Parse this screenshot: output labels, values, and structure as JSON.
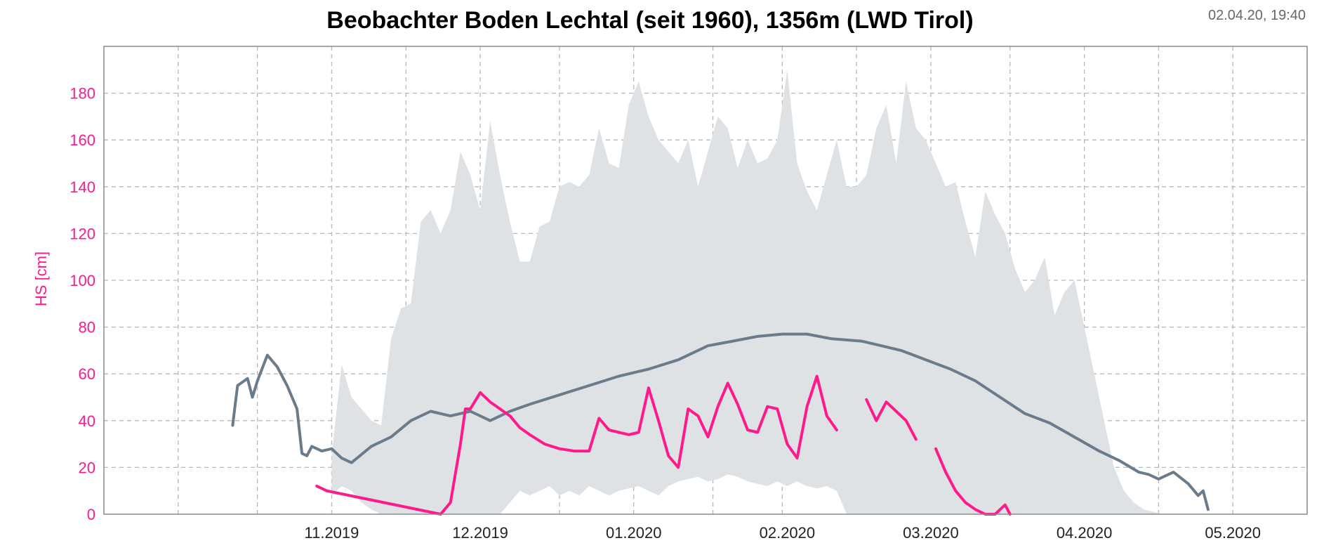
{
  "timestamp": "02.04.20, 19:40",
  "chart_data": {
    "type": "line",
    "title": "Beobachter Boden Lechtal (seit 1960), 1356m (LWD Tirol)",
    "ylabel": "HS [cm]",
    "xlabel": "",
    "ylim": [
      0,
      200
    ],
    "yticks": [
      0,
      20,
      40,
      60,
      80,
      100,
      120,
      140,
      160,
      180
    ],
    "x_unit": "date",
    "xlim": [
      "2019-10-01",
      "2020-05-31"
    ],
    "xticks": [
      {
        "label": "11.2019",
        "date": "2019-11-01"
      },
      {
        "label": "12.2019",
        "date": "2019-12-01"
      },
      {
        "label": "01.2020",
        "date": "2020-01-01"
      },
      {
        "label": "02.2020",
        "date": "2020-02-01"
      },
      {
        "label": "03.2020",
        "date": "2020-03-01"
      },
      {
        "label": "04.2020",
        "date": "2020-04-01"
      },
      {
        "label": "05.2020",
        "date": "2020-05-01"
      }
    ],
    "grid": true,
    "colors": {
      "current": "#ff1a8c",
      "median": "#6b7b8a",
      "range": "#dfe2e5",
      "axis_text": "#ff1a8c"
    },
    "series": [
      {
        "role": "range",
        "kind": "band",
        "x": [
          "2019-11-16",
          "2019-11-18",
          "2019-11-20",
          "2019-11-22",
          "2019-11-24",
          "2019-11-26",
          "2019-11-28",
          "2019-11-30",
          "2019-12-02",
          "2019-12-04",
          "2019-12-06",
          "2019-12-08",
          "2019-12-10",
          "2019-12-12",
          "2019-12-14",
          "2019-12-16",
          "2019-12-18",
          "2019-12-20",
          "2019-12-22",
          "2019-12-24",
          "2019-12-26",
          "2019-12-28",
          "2019-12-30",
          "2020-01-01",
          "2020-01-03",
          "2020-01-05",
          "2020-01-07",
          "2020-01-09",
          "2020-01-11",
          "2020-01-13",
          "2020-01-15",
          "2020-01-17",
          "2020-01-19",
          "2020-01-21",
          "2020-01-23",
          "2020-01-25",
          "2020-01-27",
          "2020-01-29",
          "2020-01-31",
          "2020-02-02",
          "2020-02-04",
          "2020-02-06",
          "2020-02-08",
          "2020-02-10",
          "2020-02-12",
          "2020-02-14",
          "2020-02-16",
          "2020-02-18",
          "2020-02-20",
          "2020-02-22",
          "2020-02-24",
          "2020-02-26",
          "2020-02-28",
          "2020-03-01",
          "2020-03-03",
          "2020-03-05",
          "2020-03-07",
          "2020-03-09",
          "2020-03-11",
          "2020-03-13",
          "2020-03-15",
          "2020-03-17",
          "2020-03-19",
          "2020-03-21",
          "2020-03-23",
          "2020-03-25",
          "2020-03-27",
          "2020-03-29",
          "2020-03-31",
          "2020-04-02",
          "2020-04-04",
          "2020-04-06",
          "2020-04-08",
          "2020-04-10",
          "2020-04-12",
          "2020-04-14",
          "2020-04-16",
          "2020-04-18",
          "2020-04-20",
          "2020-04-22",
          "2020-04-24",
          "2020-04-26",
          "2020-04-28",
          "2020-04-30",
          "2020-05-02",
          "2020-05-05"
        ],
        "high": [
          25,
          64,
          50,
          45,
          40,
          38,
          75,
          88,
          90,
          125,
          130,
          120,
          130,
          155,
          145,
          130,
          168,
          145,
          125,
          108,
          108,
          123,
          125,
          140,
          142,
          140,
          145,
          165,
          150,
          148,
          175,
          185,
          170,
          160,
          155,
          150,
          160,
          140,
          155,
          170,
          165,
          148,
          160,
          150,
          152,
          160,
          190,
          150,
          138,
          130,
          145,
          160,
          140,
          140,
          145,
          165,
          175,
          150,
          185,
          165,
          160,
          150,
          140,
          142,
          125,
          110,
          138,
          128,
          120,
          105,
          95,
          100,
          110,
          85,
          95,
          100,
          80,
          60,
          40,
          20,
          10,
          5,
          2,
          1,
          0,
          0
        ],
        "low": [
          8,
          12,
          10,
          5,
          2,
          0,
          0,
          0,
          0,
          0,
          0,
          0,
          0,
          0,
          0,
          0,
          0,
          0,
          5,
          10,
          8,
          10,
          12,
          8,
          10,
          8,
          12,
          10,
          8,
          10,
          11,
          12,
          10,
          8,
          12,
          14,
          15,
          16,
          14,
          15,
          17,
          16,
          14,
          13,
          12,
          14,
          12,
          14,
          12,
          11,
          12,
          10,
          0,
          0,
          0,
          0,
          0,
          0,
          0,
          0,
          0,
          0,
          0,
          0,
          0,
          0,
          0,
          0,
          0,
          0,
          0,
          0,
          0,
          0,
          0,
          0,
          0,
          0,
          0,
          0,
          0,
          0,
          0,
          0,
          0,
          0
        ]
      },
      {
        "role": "median",
        "kind": "line",
        "x": [
          "2019-10-27",
          "2019-10-28",
          "2019-10-30",
          "2019-10-31",
          "2019-11-01",
          "2019-11-03",
          "2019-11-05",
          "2019-11-07",
          "2019-11-09",
          "2019-11-10",
          "2019-11-11",
          "2019-11-12",
          "2019-11-14",
          "2019-11-16",
          "2019-11-18",
          "2019-11-20",
          "2019-11-24",
          "2019-11-28",
          "2019-12-02",
          "2019-12-06",
          "2019-12-10",
          "2019-12-14",
          "2019-12-16",
          "2019-12-18",
          "2019-12-22",
          "2019-12-26",
          "2020-01-01",
          "2020-01-07",
          "2020-01-13",
          "2020-01-19",
          "2020-01-25",
          "2020-01-31",
          "2020-02-05",
          "2020-02-10",
          "2020-02-15",
          "2020-02-20",
          "2020-02-25",
          "2020-03-02",
          "2020-03-06",
          "2020-03-10",
          "2020-03-15",
          "2020-03-20",
          "2020-03-25",
          "2020-03-30",
          "2020-04-04",
          "2020-04-09",
          "2020-04-14",
          "2020-04-19",
          "2020-04-23",
          "2020-04-27",
          "2020-04-29",
          "2020-05-01",
          "2020-05-04",
          "2020-05-07",
          "2020-05-09",
          "2020-05-10",
          "2020-05-11"
        ],
        "values": [
          38,
          55,
          58,
          50,
          57,
          68,
          63,
          55,
          45,
          26,
          25,
          29,
          27,
          28,
          24,
          22,
          29,
          33,
          40,
          44,
          42,
          44,
          42,
          40,
          44,
          47,
          51,
          55,
          59,
          62,
          66,
          72,
          74,
          76,
          77,
          77,
          75,
          74,
          72,
          70,
          66,
          62,
          57,
          50,
          43,
          39,
          33,
          27,
          23,
          18,
          17,
          15,
          18,
          13,
          8,
          10,
          2
        ]
      },
      {
        "role": "current",
        "kind": "line",
        "x": [
          "2019-11-13",
          "2019-11-15",
          "2019-12-08",
          "2019-12-10",
          "2019-12-12",
          "2019-12-13",
          "2019-12-14",
          "2019-12-16",
          "2019-12-18",
          "2019-12-20",
          "2019-12-22",
          "2019-12-24",
          "2019-12-26",
          "2019-12-29",
          "2020-01-01",
          "2020-01-04",
          "2020-01-07",
          "2020-01-09",
          "2020-01-11",
          "2020-01-13",
          "2020-01-15",
          "2020-01-17",
          "2020-01-19",
          "2020-01-21",
          "2020-01-23",
          "2020-01-25",
          "2020-01-27",
          "2020-01-29",
          "2020-01-31",
          "2020-02-02",
          "2020-02-04",
          "2020-02-06",
          "2020-02-08",
          "2020-02-10",
          "2020-02-12",
          "2020-02-14",
          "2020-02-16",
          "2020-02-18",
          "2020-02-20",
          "2020-02-22",
          "2020-02-24",
          "2020-02-26",
          "2020-02-28",
          "2020-03-03",
          "2020-03-05",
          "2020-03-07",
          "2020-03-09",
          "2020-03-11",
          "2020-03-13",
          "2020-03-15",
          "2020-03-17",
          "2020-03-19",
          "2020-03-21",
          "2020-03-23",
          "2020-03-25",
          "2020-03-27",
          "2020-03-29",
          "2020-03-31",
          "2020-04-01"
        ],
        "values": [
          12,
          10,
          0,
          5,
          30,
          45,
          45,
          52,
          48,
          45,
          42,
          37,
          34,
          30,
          28,
          27,
          27,
          41,
          36,
          35,
          34,
          35,
          54,
          40,
          25,
          20,
          45,
          42,
          33,
          46,
          56,
          47,
          36,
          35,
          46,
          45,
          30,
          24,
          46,
          59,
          42,
          36,
          null,
          49,
          40,
          48,
          44,
          40,
          32,
          null,
          28,
          18,
          10,
          5,
          2,
          0,
          0,
          4,
          0
        ]
      }
    ]
  }
}
